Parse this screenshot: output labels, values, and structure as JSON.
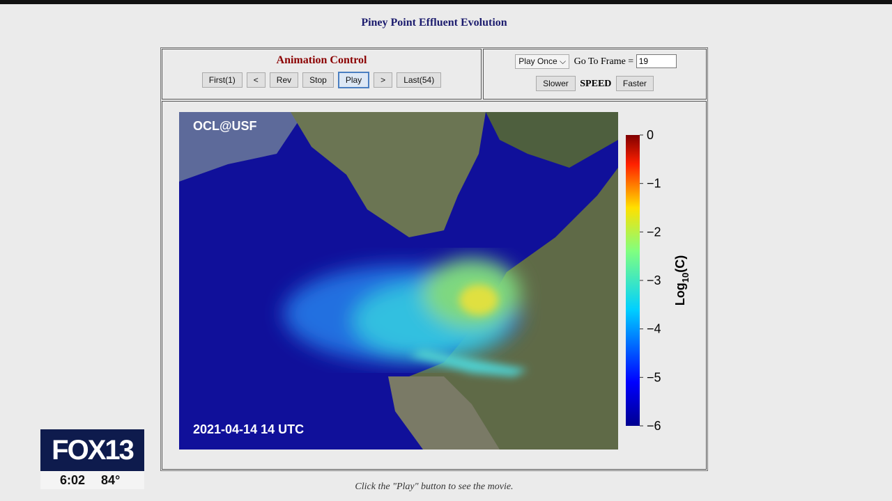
{
  "page": {
    "title": "Piney Point Effluent Evolution",
    "animation_control": {
      "heading": "Animation Control",
      "buttons": [
        "First(1)",
        "<",
        "Rev",
        "Stop",
        "Play",
        ">",
        "Last(54)"
      ]
    },
    "frame_control": {
      "mode": "Play Once",
      "goto_label": "Go To Frame =",
      "frame": "19",
      "slower": "Slower",
      "speed": "SPEED",
      "faster": "Faster"
    },
    "image": {
      "credit": "OCL@USF",
      "timestamp": "2021-04-14 14 UTC",
      "colorbar": {
        "ticks": [
          {
            "value": 0,
            "label": "0"
          },
          {
            "value": -1,
            "label": "−1"
          },
          {
            "value": -2,
            "label": "−2"
          },
          {
            "value": -3,
            "label": "−3"
          },
          {
            "value": -4,
            "label": "−4"
          },
          {
            "value": -5,
            "label": "−5"
          },
          {
            "value": -6,
            "label": "−6"
          }
        ],
        "lim": [
          -6,
          0
        ],
        "label": {
          "base": "Log",
          "subscript": "10",
          "argument": "(C)"
        }
      }
    },
    "footer": "Click the \"Play\" button to see the movie.",
    "broadcast": {
      "logo": "FOX13",
      "time": "6:02",
      "temperature": "84°"
    }
  }
}
